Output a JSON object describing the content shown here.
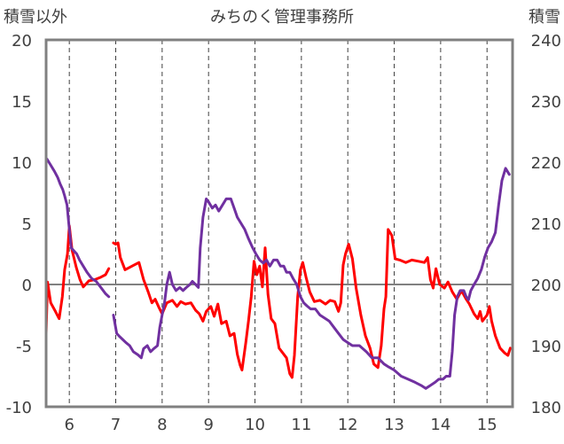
{
  "chart_data": {
    "type": "line",
    "title": "みちのく管理事務所",
    "ylabel_left": "積雪以外",
    "ylabel_right": "積雪",
    "x_range": [
      5.5,
      15.55
    ],
    "x_ticks": [
      6,
      7,
      8,
      9,
      10,
      11,
      12,
      13,
      14,
      15
    ],
    "x_tick_labels": [
      "6",
      "7",
      "8",
      "9",
      "10",
      "11",
      "12",
      "13",
      "14",
      "15"
    ],
    "y_left_range": [
      -10,
      20
    ],
    "y_left_ticks": [
      -10,
      -5,
      0,
      5,
      10,
      15,
      20
    ],
    "y_left_tick_labels": [
      "-10",
      "-5",
      "0",
      "5",
      "10",
      "15",
      "20"
    ],
    "y_right_range": [
      180,
      240
    ],
    "y_right_ticks": [
      180,
      190,
      200,
      210,
      220,
      230,
      240
    ],
    "y_right_tick_labels": [
      "180",
      "190",
      "200",
      "210",
      "220",
      "230",
      "240"
    ],
    "grid": "vertical dashed at each day; zero line solid",
    "series": [
      {
        "color": "#ff0000",
        "axis": "left",
        "segments": [
          [
            [
              5.5,
              -4
            ],
            [
              5.53,
              0.2
            ],
            [
              5.6,
              -1.5
            ],
            [
              5.7,
              -2.2
            ],
            [
              5.78,
              -2.8
            ],
            [
              5.85,
              -1
            ],
            [
              5.9,
              1.2
            ],
            [
              5.96,
              2.5
            ],
            [
              6.0,
              4.8
            ],
            [
              6.06,
              2.8
            ],
            [
              6.15,
              1.4
            ],
            [
              6.23,
              0.4
            ],
            [
              6.3,
              -0.2
            ],
            [
              6.42,
              0.3
            ],
            [
              6.55,
              0.4
            ],
            [
              6.68,
              0.6
            ],
            [
              6.78,
              0.8
            ],
            [
              6.85,
              1.3
            ]
          ],
          [
            [
              6.95,
              3.4
            ],
            [
              7.0,
              3.3
            ],
            [
              7.05,
              3.4
            ],
            [
              7.1,
              2.2
            ],
            [
              7.2,
              1.2
            ],
            [
              7.35,
              1.5
            ],
            [
              7.5,
              1.8
            ],
            [
              7.6,
              0.4
            ],
            [
              7.7,
              -0.6
            ],
            [
              7.78,
              -1.5
            ],
            [
              7.85,
              -1.2
            ],
            [
              7.92,
              -1.8
            ],
            [
              8.0,
              -2.4
            ],
            [
              8.1,
              -1.5
            ],
            [
              8.22,
              -1.3
            ],
            [
              8.32,
              -1.8
            ],
            [
              8.4,
              -1.4
            ],
            [
              8.5,
              -1.6
            ],
            [
              8.62,
              -1.5
            ],
            [
              8.72,
              -2.1
            ],
            [
              8.8,
              -2.4
            ],
            [
              8.88,
              -3.0
            ],
            [
              8.95,
              -2.2
            ],
            [
              9.05,
              -1.8
            ],
            [
              9.12,
              -2.6
            ],
            [
              9.2,
              -1.6
            ],
            [
              9.28,
              -3.2
            ],
            [
              9.38,
              -3.0
            ],
            [
              9.46,
              -4.2
            ],
            [
              9.55,
              -4.0
            ],
            [
              9.62,
              -5.7
            ],
            [
              9.68,
              -6.6
            ],
            [
              9.72,
              -7.0
            ],
            [
              9.8,
              -4.8
            ],
            [
              9.86,
              -3.0
            ],
            [
              9.92,
              -1.0
            ],
            [
              9.98,
              1.9
            ],
            [
              10.04,
              0.8
            ],
            [
              10.1,
              1.5
            ],
            [
              10.16,
              -0.2
            ],
            [
              10.22,
              3.0
            ],
            [
              10.28,
              -0.8
            ],
            [
              10.35,
              -2.8
            ],
            [
              10.43,
              -3.2
            ],
            [
              10.52,
              -5.2
            ],
            [
              10.6,
              -5.6
            ],
            [
              10.68,
              -6.0
            ],
            [
              10.75,
              -7.3
            ],
            [
              10.8,
              -7.6
            ],
            [
              10.85,
              -5.8
            ],
            [
              10.92,
              -1.0
            ],
            [
              10.98,
              1.2
            ],
            [
              11.03,
              1.8
            ],
            [
              11.1,
              0.6
            ],
            [
              11.18,
              -0.6
            ],
            [
              11.28,
              -1.4
            ],
            [
              11.4,
              -1.3
            ],
            [
              11.52,
              -1.6
            ],
            [
              11.62,
              -1.3
            ],
            [
              11.72,
              -1.4
            ],
            [
              11.8,
              -2.2
            ],
            [
              11.85,
              -1.5
            ],
            [
              11.9,
              1.6
            ],
            [
              11.95,
              2.5
            ],
            [
              12.02,
              3.3
            ],
            [
              12.1,
              2.1
            ],
            [
              12.18,
              -0.3
            ],
            [
              12.28,
              -2.5
            ],
            [
              12.38,
              -4.2
            ],
            [
              12.48,
              -5.2
            ],
            [
              12.56,
              -6.5
            ],
            [
              12.65,
              -6.8
            ],
            [
              12.72,
              -5.0
            ],
            [
              12.78,
              -2.0
            ],
            [
              12.82,
              -1.0
            ],
            [
              12.87,
              4.5
            ],
            [
              12.95,
              4.0
            ],
            [
              13.02,
              2.1
            ],
            [
              13.12,
              2.0
            ],
            [
              13.25,
              1.8
            ],
            [
              13.38,
              2.0
            ],
            [
              13.52,
              1.9
            ],
            [
              13.65,
              1.8
            ],
            [
              13.72,
              2.2
            ],
            [
              13.78,
              0.4
            ],
            [
              13.84,
              -0.3
            ],
            [
              13.9,
              1.3
            ],
            [
              13.98,
              0.0
            ],
            [
              14.08,
              -0.3
            ],
            [
              14.16,
              0.2
            ],
            [
              14.25,
              -0.6
            ],
            [
              14.35,
              -1.2
            ],
            [
              14.45,
              -0.5
            ],
            [
              14.55,
              -1.2
            ],
            [
              14.62,
              -1.6
            ],
            [
              14.72,
              -2.4
            ],
            [
              14.8,
              -2.8
            ],
            [
              14.85,
              -2.2
            ],
            [
              14.9,
              -3.0
            ],
            [
              15.0,
              -2.5
            ],
            [
              15.05,
              -1.8
            ],
            [
              15.1,
              -3.0
            ],
            [
              15.18,
              -4.2
            ],
            [
              15.28,
              -5.2
            ],
            [
              15.38,
              -5.6
            ],
            [
              15.45,
              -5.8
            ],
            [
              15.5,
              -5.2
            ]
          ]
        ]
      },
      {
        "color": "#7030a0",
        "axis": "right",
        "segments": [
          [
            [
              5.52,
              220.5
            ],
            [
              5.6,
              219.5
            ],
            [
              5.68,
              218.5
            ],
            [
              5.75,
              217.5
            ],
            [
              5.8,
              216.5
            ],
            [
              5.86,
              215.5
            ],
            [
              5.9,
              214.5
            ],
            [
              5.95,
              213
            ],
            [
              6.0,
              209
            ],
            [
              6.04,
              206
            ],
            [
              6.1,
              205.5
            ],
            [
              6.16,
              205
            ],
            [
              6.22,
              204
            ],
            [
              6.3,
              203
            ],
            [
              6.38,
              202
            ],
            [
              6.48,
              201
            ],
            [
              6.58,
              200.5
            ],
            [
              6.68,
              199.5
            ],
            [
              6.78,
              198.5
            ],
            [
              6.85,
              198
            ]
          ],
          [
            [
              6.95,
              195
            ],
            [
              7.02,
              192
            ],
            [
              7.08,
              191.5
            ],
            [
              7.15,
              191
            ],
            [
              7.22,
              190.5
            ],
            [
              7.3,
              190
            ],
            [
              7.38,
              189
            ],
            [
              7.48,
              188.5
            ],
            [
              7.55,
              188
            ],
            [
              7.6,
              189.5
            ],
            [
              7.68,
              190
            ],
            [
              7.75,
              189
            ],
            [
              7.82,
              189.5
            ],
            [
              7.9,
              190
            ],
            [
              7.95,
              193
            ],
            [
              8.0,
              195
            ],
            [
              8.05,
              197
            ],
            [
              8.1,
              200
            ],
            [
              8.16,
              202
            ],
            [
              8.22,
              200
            ],
            [
              8.3,
              199
            ],
            [
              8.38,
              199.5
            ],
            [
              8.45,
              199
            ],
            [
              8.52,
              199.5
            ],
            [
              8.6,
              200
            ],
            [
              8.65,
              200.5
            ],
            [
              8.72,
              200
            ],
            [
              8.78,
              199.5
            ],
            [
              8.82,
              206
            ],
            [
              8.88,
              211
            ],
            [
              8.95,
              214
            ],
            [
              9.0,
              213.5
            ],
            [
              9.08,
              212.5
            ],
            [
              9.15,
              213
            ],
            [
              9.22,
              212
            ],
            [
              9.3,
              213
            ],
            [
              9.38,
              214
            ],
            [
              9.48,
              214
            ],
            [
              9.55,
              212.5
            ],
            [
              9.62,
              211
            ],
            [
              9.7,
              210
            ],
            [
              9.78,
              209
            ],
            [
              9.86,
              207.5
            ],
            [
              9.95,
              206
            ],
            [
              10.02,
              205
            ],
            [
              10.1,
              204
            ],
            [
              10.18,
              203.5
            ],
            [
              10.25,
              204
            ],
            [
              10.32,
              203
            ],
            [
              10.4,
              204
            ],
            [
              10.48,
              204
            ],
            [
              10.55,
              203
            ],
            [
              10.62,
              203
            ],
            [
              10.68,
              202
            ],
            [
              10.75,
              202
            ],
            [
              10.82,
              201
            ],
            [
              10.9,
              200
            ],
            [
              10.98,
              198
            ],
            [
              11.05,
              197
            ],
            [
              11.12,
              196.5
            ],
            [
              11.2,
              196
            ],
            [
              11.3,
              196
            ],
            [
              11.4,
              195
            ],
            [
              11.5,
              194.5
            ],
            [
              11.6,
              194
            ],
            [
              11.7,
              193
            ],
            [
              11.8,
              192
            ],
            [
              11.9,
              191
            ],
            [
              12.0,
              190.5
            ],
            [
              12.1,
              190
            ],
            [
              12.25,
              190
            ],
            [
              12.4,
              189
            ],
            [
              12.52,
              188
            ],
            [
              12.65,
              188
            ],
            [
              12.78,
              187
            ],
            [
              12.88,
              186.5
            ],
            [
              13.0,
              186
            ],
            [
              13.15,
              185
            ],
            [
              13.3,
              184.5
            ],
            [
              13.45,
              184
            ],
            [
              13.58,
              183.5
            ],
            [
              13.68,
              183
            ],
            [
              13.78,
              183.5
            ],
            [
              13.88,
              184
            ],
            [
              13.96,
              184.5
            ],
            [
              14.05,
              184.5
            ],
            [
              14.12,
              185
            ],
            [
              14.2,
              185
            ],
            [
              14.25,
              189
            ],
            [
              14.3,
              195
            ],
            [
              14.36,
              198
            ],
            [
              14.42,
              199
            ],
            [
              14.5,
              199
            ],
            [
              14.55,
              198
            ],
            [
              14.6,
              197.5
            ],
            [
              14.65,
              199
            ],
            [
              14.72,
              200
            ],
            [
              14.8,
              201
            ],
            [
              14.88,
              202.5
            ],
            [
              14.95,
              204.5
            ],
            [
              15.02,
              206
            ],
            [
              15.1,
              207
            ],
            [
              15.18,
              208.5
            ],
            [
              15.25,
              213
            ],
            [
              15.32,
              217
            ],
            [
              15.4,
              219
            ],
            [
              15.48,
              218
            ]
          ]
        ]
      }
    ]
  }
}
